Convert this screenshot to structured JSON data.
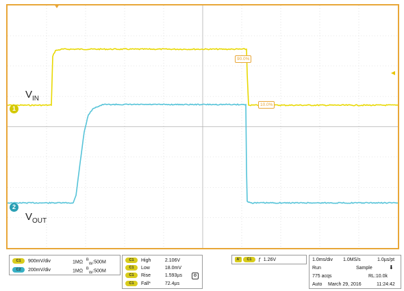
{
  "screen": {
    "border_color": "#e8a637",
    "ch1_color": "#e8d800",
    "ch2_color": "#55c3d8",
    "grid_divisions": {
      "x": 10,
      "y": 8
    }
  },
  "waveforms": {
    "ch1": {
      "marker_label": "1",
      "signal_label": "V",
      "signal_sub": "IN"
    },
    "ch2": {
      "marker_label": "2",
      "signal_label": "V",
      "signal_sub": "OUT"
    }
  },
  "annotations": {
    "pct_90": "90.0%",
    "pct_10": "10.0%"
  },
  "channels_panel": {
    "rows": [
      {
        "badge": "C1",
        "scale": "900mV/div",
        "impedance": "1MΩ",
        "bw": "B",
        "bw_sub": "W",
        "bw_value": ":500M"
      },
      {
        "badge": "C2",
        "scale": "200mV/div",
        "impedance": "1MΩ",
        "bw": "B",
        "bw_sub": "W",
        "bw_value": ":500M"
      }
    ]
  },
  "measurements_panel": {
    "rows": [
      {
        "badge": "C1",
        "name": "High",
        "value": "2.106V"
      },
      {
        "badge": "C1",
        "name": "Low",
        "value": "18.0mV"
      },
      {
        "badge": "C1",
        "name": "Rise",
        "value": "1.593µs"
      },
      {
        "badge": "C1",
        "name": "Fall*",
        "value": "72.4µs"
      }
    ],
    "icon": "settings-icon"
  },
  "trigger_panel": {
    "source_badge": "A'",
    "channel_badge": "C1",
    "slope_symbol": "ƒ",
    "level": "1.26V"
  },
  "timebase_panel": {
    "horizontal": "1.0ms/div",
    "sample_rate": "1.0MS/s",
    "resolution": "1.0µs/pt",
    "state": "Run",
    "mode": "Sample",
    "acqs": "775 acqs",
    "record_length": "RL:10.0k",
    "trigger_mode": "Auto",
    "date": "March 29, 2016",
    "time": "11:24:42"
  }
}
